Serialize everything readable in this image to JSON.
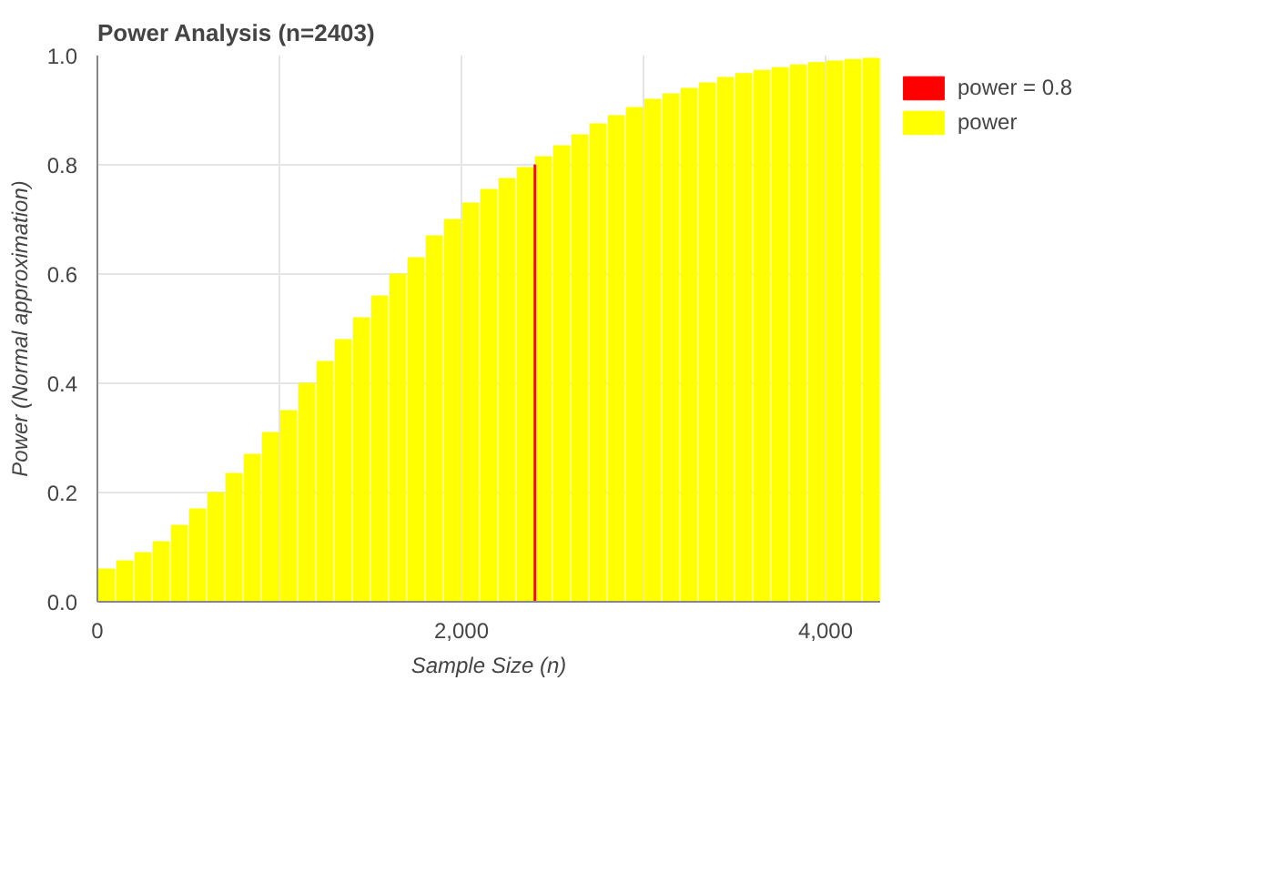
{
  "chart_data": {
    "type": "bar",
    "title": "Power Analysis (n=2403)",
    "xlabel": "Sample Size (n)",
    "ylabel": "Power (Normal approximation)",
    "xlim": [
      0,
      4300
    ],
    "ylim": [
      0,
      1
    ],
    "xticks": [
      0,
      {
        "value": 1000,
        "label": null
      },
      {
        "value": 2000,
        "label": "2,000"
      },
      {
        "value": 3000,
        "label": null
      },
      {
        "value": 4000,
        "label": "4,000"
      }
    ],
    "yticks": [
      {
        "value": 0,
        "label": "0.0"
      },
      {
        "value": 0.2,
        "label": "0.2"
      },
      {
        "value": 0.4,
        "label": "0.4"
      },
      {
        "value": 0.6,
        "label": "0.6"
      },
      {
        "value": 0.8,
        "label": "0.8"
      },
      {
        "value": 1,
        "label": "1.0"
      }
    ],
    "grid": true,
    "legend": "right",
    "series": [
      {
        "name": "power = 0.8",
        "color": "#ff0000",
        "x": [
          2403
        ],
        "values": [
          0.8
        ]
      },
      {
        "name": "power",
        "color": "#ffff00",
        "x": [
          50,
          150,
          250,
          350,
          450,
          550,
          650,
          750,
          850,
          950,
          1050,
          1150,
          1250,
          1350,
          1450,
          1550,
          1650,
          1750,
          1850,
          1950,
          2050,
          2150,
          2250,
          2350,
          2450,
          2550,
          2650,
          2750,
          2850,
          2950,
          3050,
          3150,
          3250,
          3350,
          3450,
          3550,
          3650,
          3750,
          3850,
          3950,
          4050,
          4150,
          4250
        ],
        "values": [
          0.06,
          0.075,
          0.09,
          0.11,
          0.14,
          0.17,
          0.2,
          0.235,
          0.27,
          0.31,
          0.35,
          0.4,
          0.44,
          0.48,
          0.52,
          0.56,
          0.6,
          0.63,
          0.67,
          0.7,
          0.73,
          0.755,
          0.775,
          0.795,
          0.815,
          0.835,
          0.855,
          0.875,
          0.89,
          0.905,
          0.92,
          0.93,
          0.94,
          0.95,
          0.96,
          0.967,
          0.973,
          0.978,
          0.983,
          0.987,
          0.99,
          0.993,
          0.995
        ]
      }
    ]
  }
}
